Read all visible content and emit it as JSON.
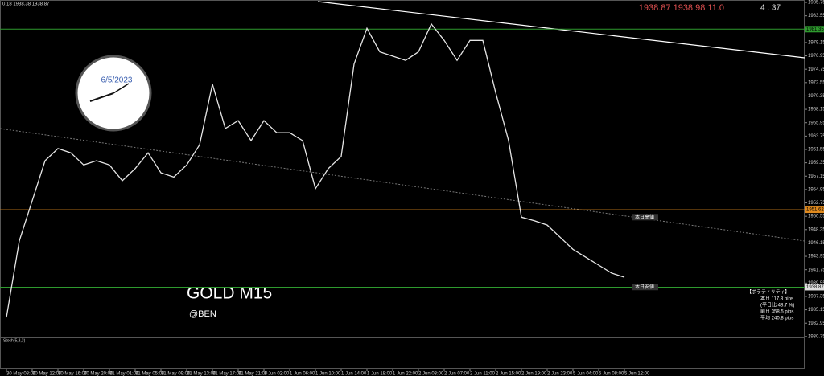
{
  "chart_data": {
    "type": "line",
    "title": "GOLD M15",
    "annotation": "@BEN",
    "header": "0.18 1938.38 1938.87",
    "quote": "1938.87  1938.98  11.0",
    "timer": "4 : 37",
    "clock_date": "6/5/2023",
    "x": [
      0,
      1,
      2,
      3,
      4,
      5,
      6,
      7,
      8,
      9,
      10,
      11,
      12,
      13,
      14,
      15,
      16,
      17,
      18,
      19,
      20,
      21,
      22,
      23,
      24,
      25,
      26,
      27,
      28,
      29,
      30,
      31,
      32,
      33,
      34,
      35,
      36,
      37,
      38,
      39,
      40,
      41,
      42,
      43,
      44,
      45,
      46,
      47,
      48
    ],
    "values": [
      1933.9,
      1946.5,
      1953.1,
      1959.7,
      1961.7,
      1961.0,
      1959.0,
      1959.7,
      1959.0,
      1956.4,
      1958.4,
      1961.0,
      1957.7,
      1957.0,
      1959.0,
      1962.3,
      1972.3,
      1965.0,
      1966.3,
      1963.0,
      1966.3,
      1964.3,
      1964.3,
      1963.0,
      1955.1,
      1958.4,
      1960.4,
      1975.6,
      1981.5,
      1977.6,
      1976.9,
      1976.2,
      1977.6,
      1982.2,
      1979.5,
      1976.2,
      1979.5,
      1979.5,
      1970.9,
      1963.0,
      1950.4,
      1949.8,
      1949.1,
      1947.1,
      1945.1,
      1943.8,
      1942.5,
      1941.2,
      1940.5
    ],
    "color": "#e6e6e6",
    "xlim": [
      -0.5,
      62
    ],
    "xticks": [
      {
        "value": 0,
        "label": "30 May 08:00"
      },
      {
        "value": 2,
        "label": "30 May 12:00"
      },
      {
        "value": 4,
        "label": "30 May 16:00"
      },
      {
        "value": 6,
        "label": "30 May 20:00"
      },
      {
        "value": 8,
        "label": "31 May 01:00"
      },
      {
        "value": 10,
        "label": "31 May 05:00"
      },
      {
        "value": 12,
        "label": "31 May 09:00"
      },
      {
        "value": 14,
        "label": "31 May 13:00"
      },
      {
        "value": 16,
        "label": "31 May 17:00"
      },
      {
        "value": 18,
        "label": "31 May 21:00"
      },
      {
        "value": 20,
        "label": "1 Jun 02:00"
      },
      {
        "value": 22,
        "label": "1 Jun 06:00"
      },
      {
        "value": 24,
        "label": "1 Jun 10:00"
      },
      {
        "value": 26,
        "label": "1 Jun 14:00"
      },
      {
        "value": 28,
        "label": "1 Jun 18:00"
      },
      {
        "value": 30,
        "label": "1 Jun 22:00"
      },
      {
        "value": 32,
        "label": "2 Jun 03:00"
      },
      {
        "value": 34,
        "label": "2 Jun 07:00"
      },
      {
        "value": 36,
        "label": "2 Jun 11:00"
      },
      {
        "value": 38,
        "label": "2 Jun 15:00"
      },
      {
        "value": 40,
        "label": "2 Jun 19:00"
      },
      {
        "value": 42,
        "label": "2 Jun 23:00"
      },
      {
        "value": 44,
        "label": "5 Jun 04:00"
      },
      {
        "value": 46,
        "label": "5 Jun 08:00"
      },
      {
        "value": 48,
        "label": "5 Jun 12:00"
      }
    ],
    "ylim": [
      1930.6,
      1986.15
    ],
    "yticks": [
      1985.75,
      1983.55,
      1981.35,
      1979.15,
      1976.95,
      1974.75,
      1972.55,
      1970.35,
      1968.15,
      1965.95,
      1963.75,
      1961.55,
      1959.35,
      1957.15,
      1954.95,
      1952.75,
      1950.55,
      1948.35,
      1946.15,
      1943.95,
      1941.75,
      1939.55,
      1937.35,
      1935.15,
      1932.95,
      1930.75
    ],
    "levels": [
      {
        "value": 1981.35,
        "color": "#2e9a2e"
      },
      {
        "value": 1951.62,
        "color": "#e08a1e"
      },
      {
        "value": 1938.87,
        "color": "#2e9a2e"
      }
    ],
    "level_notes": [
      {
        "value": 1950.4,
        "label": "本日高値"
      },
      {
        "value": 1938.9,
        "label": "本日安値"
      }
    ],
    "volatility": [
      "【ボラティリティ】",
      "本日 117.3 pips",
      "(平日比 48.7 %)",
      "前日 358.5 pips",
      "平均 240.8 pips"
    ],
    "sub_panel": "Stoch(5,3,3)"
  }
}
